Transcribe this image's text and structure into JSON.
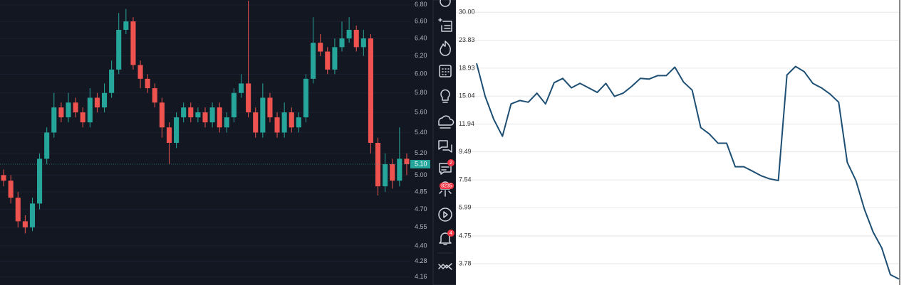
{
  "chart_data": [
    {
      "type": "candlestick",
      "log_scale": true,
      "ylim": [
        4.1,
        6.86
      ],
      "yticks": [
        {
          "value": 6.8,
          "label": "6.80"
        },
        {
          "value": 6.6,
          "label": "6.60"
        },
        {
          "value": 6.4,
          "label": "6.40"
        },
        {
          "value": 6.2,
          "label": "6.20"
        },
        {
          "value": 6.0,
          "label": "6.00"
        },
        {
          "value": 5.8,
          "label": "5.80"
        },
        {
          "value": 5.6,
          "label": "5.60"
        },
        {
          "value": 5.4,
          "label": "5.40"
        },
        {
          "value": 5.2,
          "label": "5.20"
        },
        {
          "value": 5.0,
          "label": "5.00"
        },
        {
          "value": 4.85,
          "label": "4.85"
        },
        {
          "value": 4.7,
          "label": "4.70"
        },
        {
          "value": 4.55,
          "label": "4.55"
        },
        {
          "value": 4.4,
          "label": "4.40"
        },
        {
          "value": 4.28,
          "label": "4.28"
        },
        {
          "value": 4.16,
          "label": "4.16"
        }
      ],
      "last_price": {
        "value": 5.1,
        "label": "5.10"
      },
      "up_color": "#26a69a",
      "down_color": "#ef5350",
      "candles": [
        [
          5.0,
          5.05,
          4.9,
          4.95
        ],
        [
          4.95,
          5.0,
          4.75,
          4.8
        ],
        [
          4.8,
          4.85,
          4.55,
          4.6
        ],
        [
          4.6,
          4.65,
          4.5,
          4.55
        ],
        [
          4.55,
          4.8,
          4.52,
          4.75
        ],
        [
          4.75,
          5.2,
          4.7,
          5.15
        ],
        [
          5.15,
          5.45,
          5.1,
          5.4
        ],
        [
          5.4,
          5.8,
          5.35,
          5.65
        ],
        [
          5.65,
          5.7,
          5.5,
          5.55
        ],
        [
          5.55,
          5.8,
          5.5,
          5.7
        ],
        [
          5.7,
          5.75,
          5.55,
          5.6
        ],
        [
          5.6,
          5.65,
          5.45,
          5.5
        ],
        [
          5.5,
          5.85,
          5.45,
          5.75
        ],
        [
          5.75,
          5.8,
          5.6,
          5.65
        ],
        [
          5.65,
          5.9,
          5.6,
          5.8
        ],
        [
          5.8,
          6.15,
          5.75,
          6.05
        ],
        [
          6.05,
          6.7,
          6.0,
          6.5
        ],
        [
          6.5,
          6.75,
          6.45,
          6.6
        ],
        [
          6.6,
          6.65,
          6.05,
          6.1
        ],
        [
          6.1,
          6.15,
          5.85,
          5.95
        ],
        [
          5.95,
          6.0,
          5.8,
          5.85
        ],
        [
          5.85,
          5.9,
          5.65,
          5.7
        ],
        [
          5.7,
          5.75,
          5.35,
          5.45
        ],
        [
          5.45,
          5.5,
          5.1,
          5.3
        ],
        [
          5.3,
          5.6,
          5.25,
          5.55
        ],
        [
          5.55,
          5.7,
          5.5,
          5.65
        ],
        [
          5.65,
          5.7,
          5.5,
          5.55
        ],
        [
          5.55,
          5.65,
          5.5,
          5.6
        ],
        [
          5.6,
          5.65,
          5.45,
          5.5
        ],
        [
          5.5,
          5.7,
          5.45,
          5.65
        ],
        [
          5.65,
          5.7,
          5.4,
          5.45
        ],
        [
          5.45,
          5.6,
          5.4,
          5.55
        ],
        [
          5.55,
          5.85,
          5.5,
          5.8
        ],
        [
          5.8,
          6.0,
          5.75,
          5.9
        ],
        [
          5.9,
          6.85,
          5.55,
          5.6
        ],
        [
          5.6,
          5.65,
          5.35,
          5.4
        ],
        [
          5.4,
          5.9,
          5.35,
          5.75
        ],
        [
          5.75,
          5.8,
          5.5,
          5.55
        ],
        [
          5.55,
          5.6,
          5.35,
          5.4
        ],
        [
          5.4,
          5.7,
          5.35,
          5.6
        ],
        [
          5.6,
          5.65,
          5.4,
          5.45
        ],
        [
          5.45,
          5.6,
          5.4,
          5.55
        ],
        [
          5.55,
          6.0,
          5.5,
          5.95
        ],
        [
          5.95,
          6.65,
          5.9,
          6.35
        ],
        [
          6.35,
          6.45,
          6.2,
          6.25
        ],
        [
          6.25,
          6.3,
          6.0,
          6.05
        ],
        [
          6.05,
          6.4,
          6.0,
          6.3
        ],
        [
          6.3,
          6.6,
          6.25,
          6.4
        ],
        [
          6.4,
          6.65,
          6.35,
          6.5
        ],
        [
          6.5,
          6.55,
          6.25,
          6.3
        ],
        [
          6.3,
          6.5,
          6.2,
          6.4
        ],
        [
          6.4,
          6.45,
          5.2,
          5.3
        ],
        [
          5.3,
          5.35,
          4.82,
          4.9
        ],
        [
          4.9,
          5.2,
          4.85,
          5.1
        ],
        [
          5.1,
          5.15,
          4.88,
          4.95
        ],
        [
          4.95,
          5.45,
          4.9,
          5.15
        ],
        [
          5.15,
          5.2,
          5.0,
          5.1
        ]
      ]
    },
    {
      "type": "line",
      "log_scale": true,
      "grid": true,
      "color": "#1d4e73",
      "ylim": [
        3.17,
        33.2
      ],
      "yticks": [
        {
          "value": 30,
          "label": "30.00"
        },
        {
          "value": 23.83,
          "label": "23.83"
        },
        {
          "value": 18.93,
          "label": "18.93"
        },
        {
          "value": 15.04,
          "label": "15.04"
        },
        {
          "value": 11.94,
          "label": "11.94"
        },
        {
          "value": 9.49,
          "label": "9.49"
        },
        {
          "value": 7.54,
          "label": "7.54"
        },
        {
          "value": 5.99,
          "label": "5.99"
        },
        {
          "value": 4.75,
          "label": "4.75"
        },
        {
          "value": 3.78,
          "label": "3.78"
        }
      ],
      "values": [
        19.7,
        15.0,
        12.4,
        10.8,
        14.1,
        14.5,
        14.3,
        15.4,
        14.1,
        16.8,
        17.4,
        16.1,
        16.7,
        16.1,
        15.5,
        16.7,
        15.0,
        15.4,
        16.3,
        17.4,
        17.3,
        17.8,
        17.8,
        19.1,
        16.9,
        15.8,
        11.6,
        11.0,
        10.2,
        10.2,
        8.4,
        8.4,
        8.1,
        7.8,
        7.6,
        7.5,
        17.9,
        19.2,
        18.4,
        16.7,
        16.1,
        15.3,
        14.3,
        8.7,
        7.5,
        5.9,
        4.9,
        4.3,
        3.45,
        3.33
      ]
    }
  ],
  "sidebar": {
    "badges": [
      "2",
      "8235",
      "4"
    ]
  }
}
